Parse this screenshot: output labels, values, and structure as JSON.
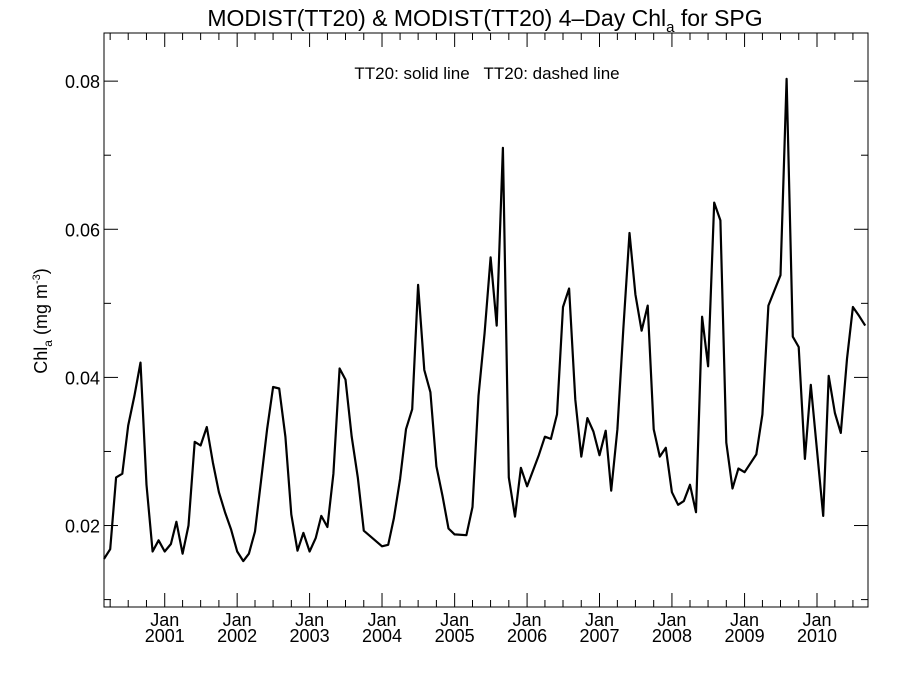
{
  "chart_data": {
    "type": "line",
    "title_main": "MODIST(TT20) & MODIST(TT20) 4–Day Chl",
    "title_sub": "a",
    "title_tail": " for SPG",
    "ylabel_main": "Chl",
    "ylabel_sub": "a",
    "ylabel_unit": " (mg m",
    "ylabel_sup": "-3",
    "ylabel_close": ")",
    "legend_text": "TT20: solid line   TT20: dashed line",
    "legend_position": "top-center",
    "grid": false,
    "xlim": [
      "2000-03-01",
      "2010-09-15"
    ],
    "ylim": [
      0.009,
      0.0865
    ],
    "yticks": [
      {
        "value": 0.02,
        "label": "0.02"
      },
      {
        "value": 0.04,
        "label": "0.04"
      },
      {
        "value": 0.06,
        "label": "0.06"
      },
      {
        "value": 0.08,
        "label": "0.08"
      }
    ],
    "yminor": [
      0.01,
      0.03,
      0.05,
      0.07
    ],
    "xticks": [
      {
        "date": "2001-01-01",
        "month": "Jan",
        "year": "2001"
      },
      {
        "date": "2002-01-01",
        "month": "Jan",
        "year": "2002"
      },
      {
        "date": "2003-01-01",
        "month": "Jan",
        "year": "2003"
      },
      {
        "date": "2004-01-01",
        "month": "Jan",
        "year": "2004"
      },
      {
        "date": "2005-01-01",
        "month": "Jan",
        "year": "2005"
      },
      {
        "date": "2006-01-01",
        "month": "Jan",
        "year": "2006"
      },
      {
        "date": "2007-01-01",
        "month": "Jan",
        "year": "2007"
      },
      {
        "date": "2008-01-01",
        "month": "Jan",
        "year": "2008"
      },
      {
        "date": "2009-01-01",
        "month": "Jan",
        "year": "2009"
      },
      {
        "date": "2010-01-01",
        "month": "Jan",
        "year": "2010"
      }
    ],
    "series": [
      {
        "style": "solid",
        "points": [
          [
            "2000-03-01",
            0.0155
          ],
          [
            "2000-04-01",
            0.0168
          ],
          [
            "2000-05-01",
            0.0265
          ],
          [
            "2000-06-01",
            0.027
          ],
          [
            "2000-07-01",
            0.0335
          ],
          [
            "2000-08-01",
            0.0375
          ],
          [
            "2000-09-01",
            0.042
          ],
          [
            "2000-10-01",
            0.0255
          ],
          [
            "2000-11-01",
            0.0165
          ],
          [
            "2000-12-01",
            0.018
          ],
          [
            "2001-01-01",
            0.0165
          ],
          [
            "2001-02-01",
            0.0175
          ],
          [
            "2001-03-01",
            0.0205
          ],
          [
            "2001-04-01",
            0.0162
          ],
          [
            "2001-05-01",
            0.02
          ],
          [
            "2001-06-01",
            0.0313
          ],
          [
            "2001-07-01",
            0.0308
          ],
          [
            "2001-08-01",
            0.0333
          ],
          [
            "2001-09-01",
            0.0285
          ],
          [
            "2001-10-01",
            0.0245
          ],
          [
            "2001-11-01",
            0.0218
          ],
          [
            "2001-12-01",
            0.0195
          ],
          [
            "2002-01-01",
            0.0165
          ],
          [
            "2002-02-01",
            0.0152
          ],
          [
            "2002-03-01",
            0.0162
          ],
          [
            "2002-04-01",
            0.0192
          ],
          [
            "2002-05-01",
            0.026
          ],
          [
            "2002-06-01",
            0.033
          ],
          [
            "2002-07-01",
            0.0387
          ],
          [
            "2002-08-01",
            0.0385
          ],
          [
            "2002-09-01",
            0.032
          ],
          [
            "2002-10-01",
            0.0215
          ],
          [
            "2002-11-01",
            0.0166
          ],
          [
            "2002-12-01",
            0.019
          ],
          [
            "2003-01-01",
            0.0165
          ],
          [
            "2003-02-01",
            0.0183
          ],
          [
            "2003-03-01",
            0.0213
          ],
          [
            "2003-04-01",
            0.0198
          ],
          [
            "2003-05-01",
            0.027
          ],
          [
            "2003-06-01",
            0.0412
          ],
          [
            "2003-07-01",
            0.0397
          ],
          [
            "2003-08-01",
            0.032
          ],
          [
            "2003-09-01",
            0.0265
          ],
          [
            "2003-10-01",
            0.0193
          ],
          [
            "2004-01-01",
            0.0172
          ],
          [
            "2004-02-01",
            0.0174
          ],
          [
            "2004-03-01",
            0.021
          ],
          [
            "2004-04-01",
            0.0263
          ],
          [
            "2004-05-01",
            0.033
          ],
          [
            "2004-06-01",
            0.0357
          ],
          [
            "2004-07-01",
            0.0525
          ],
          [
            "2004-08-01",
            0.041
          ],
          [
            "2004-09-01",
            0.038
          ],
          [
            "2004-10-01",
            0.028
          ],
          [
            "2004-11-01",
            0.024
          ],
          [
            "2004-12-01",
            0.0196
          ],
          [
            "2005-01-01",
            0.0188
          ],
          [
            "2005-03-01",
            0.0187
          ],
          [
            "2005-04-01",
            0.0225
          ],
          [
            "2005-05-01",
            0.0375
          ],
          [
            "2005-06-01",
            0.046
          ],
          [
            "2005-07-01",
            0.0562
          ],
          [
            "2005-08-01",
            0.047
          ],
          [
            "2005-09-01",
            0.071
          ],
          [
            "2005-10-01",
            0.0265
          ],
          [
            "2005-11-01",
            0.0212
          ],
          [
            "2005-12-01",
            0.0278
          ],
          [
            "2006-01-01",
            0.0253
          ],
          [
            "2006-03-01",
            0.0295
          ],
          [
            "2006-04-01",
            0.032
          ],
          [
            "2006-05-01",
            0.0317
          ],
          [
            "2006-06-01",
            0.035
          ],
          [
            "2006-07-01",
            0.0495
          ],
          [
            "2006-08-01",
            0.052
          ],
          [
            "2006-09-01",
            0.037
          ],
          [
            "2006-10-01",
            0.0293
          ],
          [
            "2006-11-01",
            0.0345
          ],
          [
            "2006-12-01",
            0.0327
          ],
          [
            "2007-01-01",
            0.0295
          ],
          [
            "2007-02-01",
            0.0328
          ],
          [
            "2007-03-01",
            0.0247
          ],
          [
            "2007-04-01",
            0.033
          ],
          [
            "2007-05-01",
            0.0465
          ],
          [
            "2007-06-01",
            0.0595
          ],
          [
            "2007-07-01",
            0.0512
          ],
          [
            "2007-08-01",
            0.0463
          ],
          [
            "2007-09-01",
            0.0497
          ],
          [
            "2007-10-01",
            0.033
          ],
          [
            "2007-11-01",
            0.0293
          ],
          [
            "2007-12-01",
            0.0305
          ],
          [
            "2008-01-01",
            0.0245
          ],
          [
            "2008-02-01",
            0.0228
          ],
          [
            "2008-03-01",
            0.0233
          ],
          [
            "2008-04-01",
            0.0255
          ],
          [
            "2008-05-01",
            0.0218
          ],
          [
            "2008-06-01",
            0.0482
          ],
          [
            "2008-07-01",
            0.0415
          ],
          [
            "2008-08-01",
            0.0636
          ],
          [
            "2008-09-01",
            0.0612
          ],
          [
            "2008-10-01",
            0.0312
          ],
          [
            "2008-11-01",
            0.025
          ],
          [
            "2008-12-01",
            0.0277
          ],
          [
            "2009-01-01",
            0.0272
          ],
          [
            "2009-03-01",
            0.0296
          ],
          [
            "2009-04-01",
            0.035
          ],
          [
            "2009-05-01",
            0.0497
          ],
          [
            "2009-07-01",
            0.0538
          ],
          [
            "2009-08-01",
            0.0803
          ],
          [
            "2009-09-01",
            0.0455
          ],
          [
            "2009-10-01",
            0.0441
          ],
          [
            "2009-11-01",
            0.029
          ],
          [
            "2009-12-01",
            0.039
          ],
          [
            "2010-02-01",
            0.0213
          ],
          [
            "2010-03-01",
            0.0402
          ],
          [
            "2010-04-01",
            0.0352
          ],
          [
            "2010-05-01",
            0.0325
          ],
          [
            "2010-06-01",
            0.0425
          ],
          [
            "2010-07-01",
            0.0495
          ],
          [
            "2010-08-01",
            0.0483
          ],
          [
            "2010-09-01",
            0.047
          ]
        ]
      }
    ]
  }
}
